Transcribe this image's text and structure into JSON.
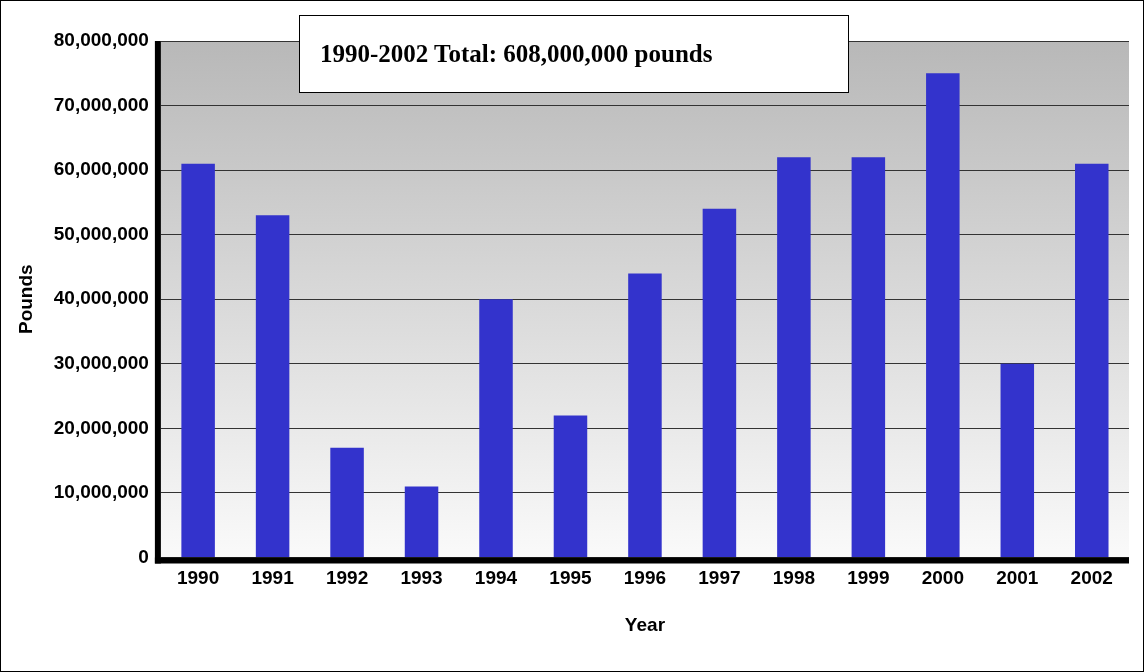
{
  "chart_data": {
    "type": "bar",
    "categories": [
      "1990",
      "1991",
      "1992",
      "1993",
      "1994",
      "1995",
      "1996",
      "1997",
      "1998",
      "1999",
      "2000",
      "2001",
      "2002"
    ],
    "values": [
      61000000,
      53000000,
      17000000,
      11000000,
      40000000,
      22000000,
      44000000,
      54000000,
      62000000,
      62000000,
      75000000,
      30000000,
      61000000
    ],
    "color": "#3333cc",
    "xlabel": "Year",
    "ylabel": "Pounds",
    "ylim": [
      0,
      80000000
    ],
    "yticks": [
      {
        "value": 0,
        "label": "0"
      },
      {
        "value": 10000000,
        "label": "10,000,000"
      },
      {
        "value": 20000000,
        "label": "20,000,000"
      },
      {
        "value": 30000000,
        "label": "30,000,000"
      },
      {
        "value": 40000000,
        "label": "40,000,000"
      },
      {
        "value": 50000000,
        "label": "50,000,000"
      },
      {
        "value": 60000000,
        "label": "60,000,000"
      },
      {
        "value": 70000000,
        "label": "70,000,000"
      },
      {
        "value": 80000000,
        "label": "80,000,000"
      }
    ],
    "grid": "y",
    "legend": false,
    "annotations": [
      "1990-2002 Total:  608,000,000 pounds"
    ]
  }
}
